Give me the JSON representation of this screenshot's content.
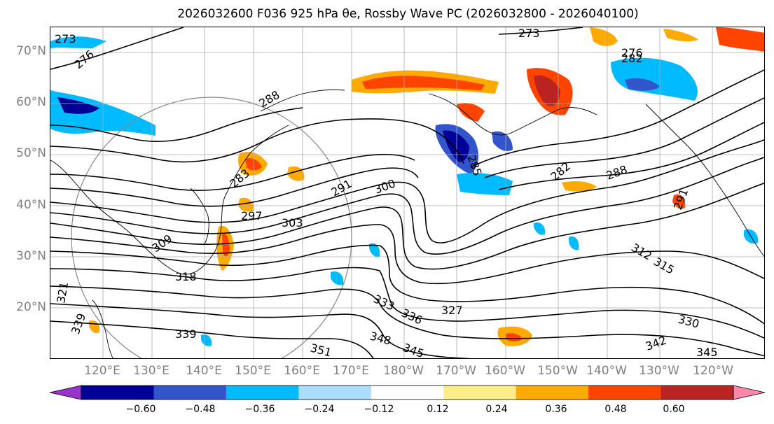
{
  "title": "2026032600 F036 925 hPa θe, Rossby Wave PC (2026032800 - 2026040100)",
  "map": {
    "lat_labels": [
      "70°N",
      "60°N",
      "50°N",
      "40°N",
      "30°N",
      "20°N"
    ],
    "lon_labels": [
      "120°E",
      "130°E",
      "140°E",
      "150°E",
      "160°E",
      "170°E",
      "180°W",
      "170°W",
      "160°W",
      "150°W",
      "140°W",
      "130°W",
      "120°W"
    ],
    "contour_labels": [
      "273",
      "276",
      "273",
      "276",
      "288",
      "282",
      "285",
      "283",
      "291",
      "300",
      "297",
      "303",
      "309",
      "282",
      "288",
      "291",
      "312",
      "315",
      "318",
      "321",
      "333",
      "336",
      "327",
      "339",
      "348",
      "351",
      "345",
      "330",
      "342",
      "345",
      "339"
    ]
  },
  "colorbar": {
    "colors": [
      "#9933cc",
      "#000099",
      "#3355cc",
      "#00bbff",
      "#aaddff",
      "#ffffff",
      "#ffee88",
      "#ffaa00",
      "#ff4400",
      "#bb2222",
      "#ff88aa"
    ],
    "ticks": [
      "−0.60",
      "−0.48",
      "−0.36",
      "−0.24",
      "−0.12",
      "0.12",
      "0.24",
      "0.36",
      "0.48",
      "0.60"
    ]
  }
}
